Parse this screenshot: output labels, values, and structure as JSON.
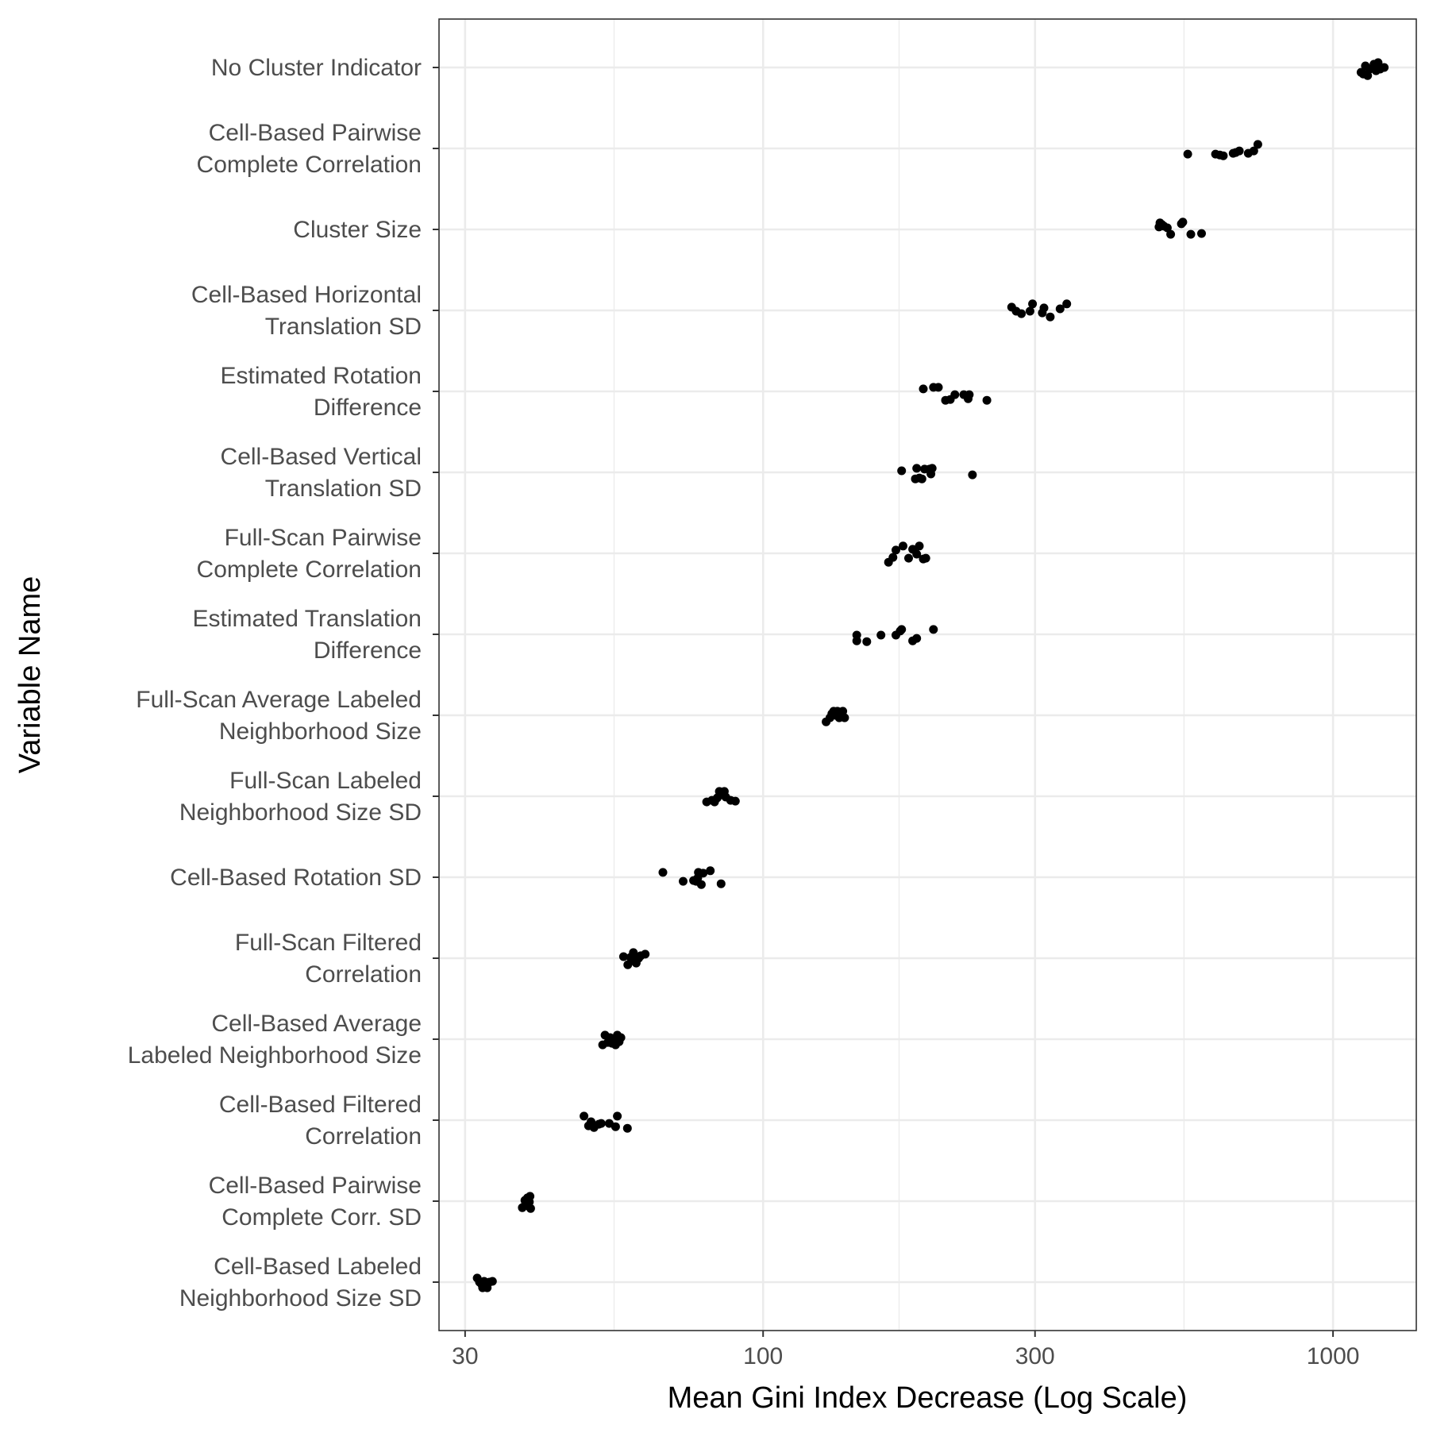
{
  "chart_data": {
    "type": "scatter",
    "title": "",
    "xlabel": "Mean Gini Index Decrease (Log Scale)",
    "ylabel": "Variable Name",
    "x_scale": "log",
    "xlim": [
      27,
      1400
    ],
    "x_ticks": [
      30,
      100,
      300,
      1000
    ],
    "grid": true,
    "legend": "none",
    "point_color": "#000000",
    "categories": [
      "No Cluster Indicator",
      "Cell-Based Pairwise\nComplete Correlation",
      "Cluster Size",
      "Cell-Based Horizontal\nTranslation SD",
      "Estimated Rotation\nDifference",
      "Cell-Based Vertical\nTranslation SD",
      "Full-Scan Pairwise\nComplete Correlation",
      "Estimated Translation\nDifference",
      "Full-Scan Average Labeled\nNeighborhood Size",
      "Full-Scan Labeled\nNeighborhood Size SD",
      "Cell-Based Rotation SD",
      "Full-Scan Filtered\nCorrelation",
      "Cell-Based Average\nLabeled Neighborhood Size",
      "Cell-Based Filtered\nCorrelation",
      "Cell-Based Pairwise\nComplete Corr. SD",
      "Cell-Based Labeled\nNeighborhood Size SD"
    ],
    "points": [
      [
        [
          1120,
          0.06
        ],
        [
          1140,
          -0.02
        ],
        [
          1150,
          0.1
        ],
        [
          1160,
          0.02
        ],
        [
          1180,
          -0.04
        ],
        [
          1190,
          0.04
        ],
        [
          1210,
          0.02
        ],
        [
          1230,
          0.0
        ],
        [
          1130,
          0.08
        ],
        [
          1200,
          -0.06
        ]
      ],
      [
        [
          556,
          0.07
        ],
        [
          622,
          0.07
        ],
        [
          642,
          0.09
        ],
        [
          668,
          0.06
        ],
        [
          685,
          0.03
        ],
        [
          710,
          0.06
        ],
        [
          726,
          0.03
        ],
        [
          738,
          -0.05
        ],
        [
          633,
          0.08
        ],
        [
          675,
          0.05
        ]
      ],
      [
        [
          495,
          -0.03
        ],
        [
          497,
          -0.08
        ],
        [
          505,
          -0.04
        ],
        [
          512,
          -0.02
        ],
        [
          519,
          0.06
        ],
        [
          542,
          -0.07
        ],
        [
          545,
          -0.09
        ],
        [
          563,
          0.06
        ],
        [
          588,
          0.05
        ],
        [
          501,
          -0.06
        ]
      ],
      [
        [
          273,
          -0.04
        ],
        [
          278,
          0.01
        ],
        [
          284,
          0.04
        ],
        [
          294,
          0.01
        ],
        [
          297,
          -0.08
        ],
        [
          311,
          -0.03
        ],
        [
          319,
          0.08
        ],
        [
          332,
          -0.02
        ],
        [
          341,
          -0.08
        ],
        [
          309,
          0.03
        ]
      ],
      [
        [
          191,
          -0.03
        ],
        [
          199,
          -0.05
        ],
        [
          203,
          -0.05
        ],
        [
          209,
          0.11
        ],
        [
          213,
          0.1
        ],
        [
          217,
          0.04
        ],
        [
          225,
          0.04
        ],
        [
          229,
          0.09
        ],
        [
          230,
          0.04
        ],
        [
          247,
          0.11
        ]
      ],
      [
        [
          175,
          -0.02
        ],
        [
          185,
          0.08
        ],
        [
          186,
          -0.05
        ],
        [
          190,
          0.08
        ],
        [
          192,
          -0.04
        ],
        [
          196,
          -0.04
        ],
        [
          197,
          0.02
        ],
        [
          198,
          -0.05
        ],
        [
          233,
          0.03
        ],
        [
          188,
          0.07
        ]
      ],
      [
        [
          166,
          0.11
        ],
        [
          169,
          0.05
        ],
        [
          171,
          -0.04
        ],
        [
          176,
          -0.09
        ],
        [
          180,
          0.06
        ],
        [
          183,
          -0.05
        ],
        [
          186,
          0.01
        ],
        [
          188,
          -0.09
        ],
        [
          191,
          0.07
        ],
        [
          193,
          0.06
        ]
      ],
      [
        [
          146,
          0.08
        ],
        [
          146,
          0.01
        ],
        [
          152,
          0.09
        ],
        [
          161,
          0.01
        ],
        [
          171,
          0.01
        ],
        [
          174,
          -0.04
        ],
        [
          175,
          -0.06
        ],
        [
          183,
          0.08
        ],
        [
          186,
          0.05
        ],
        [
          199,
          -0.06
        ]
      ],
      [
        [
          129,
          0.08
        ],
        [
          131,
          0.03
        ],
        [
          133,
          -0.05
        ],
        [
          134,
          0.0
        ],
        [
          135,
          -0.05
        ],
        [
          137,
          -0.03
        ],
        [
          136,
          0.03
        ],
        [
          138,
          -0.05
        ],
        [
          139,
          0.03
        ],
        [
          132,
          -0.02
        ]
      ],
      [
        [
          79.6,
          0.07
        ],
        [
          82.2,
          0.07
        ],
        [
          83.1,
          0.02
        ],
        [
          83.8,
          -0.06
        ],
        [
          85.5,
          -0.06
        ],
        [
          87.7,
          0.05
        ],
        [
          89.4,
          0.06
        ],
        [
          81.3,
          0.05
        ],
        [
          84.6,
          -0.02
        ],
        [
          86.0,
          0.01
        ]
      ],
      [
        [
          66.7,
          -0.06
        ],
        [
          72.4,
          0.05
        ],
        [
          75.5,
          0.04
        ],
        [
          76.3,
          0.05
        ],
        [
          77.0,
          -0.06
        ],
        [
          77.9,
          0.09
        ],
        [
          78.5,
          -0.05
        ],
        [
          80.8,
          -0.08
        ],
        [
          84.4,
          0.08
        ],
        [
          76.8,
          0.01
        ]
      ],
      [
        [
          56.9,
          -0.02
        ],
        [
          57.9,
          0.08
        ],
        [
          59.2,
          -0.07
        ],
        [
          59.3,
          -0.04
        ],
        [
          59.9,
          0.06
        ],
        [
          62.1,
          -0.05
        ],
        [
          58.9,
          0.03
        ],
        [
          60.5,
          0.0
        ],
        [
          61.0,
          -0.03
        ],
        [
          58.5,
          -0.01
        ]
      ],
      [
        [
          52.3,
          0.07
        ],
        [
          52.8,
          -0.05
        ],
        [
          53.9,
          -0.02
        ],
        [
          54.3,
          0.05
        ],
        [
          55.1,
          0.07
        ],
        [
          55.9,
          0.03
        ],
        [
          56.3,
          -0.02
        ],
        [
          53.4,
          0.04
        ],
        [
          54.8,
          0.0
        ],
        [
          55.5,
          -0.05
        ]
      ],
      [
        [
          48.5,
          -0.05
        ],
        [
          49.4,
          0.07
        ],
        [
          50.5,
          0.09
        ],
        [
          52.0,
          0.04
        ],
        [
          53.7,
          0.04
        ],
        [
          55.1,
          0.08
        ],
        [
          55.5,
          -0.05
        ],
        [
          57.8,
          0.1
        ],
        [
          49.9,
          0.02
        ],
        [
          51.5,
          0.05
        ]
      ],
      [
        [
          37.8,
          0.08
        ],
        [
          38.2,
          -0.01
        ],
        [
          38.4,
          0.02
        ],
        [
          38.6,
          -0.04
        ],
        [
          38.7,
          0.06
        ],
        [
          39.1,
          0.09
        ],
        [
          39.0,
          -0.06
        ],
        [
          38.3,
          0.03
        ],
        [
          38.9,
          0.01
        ],
        [
          38.5,
          -0.02
        ]
      ],
      [
        [
          31.5,
          -0.05
        ],
        [
          31.8,
          0.0
        ],
        [
          32.1,
          0.03
        ],
        [
          32.2,
          0.07
        ],
        [
          32.4,
          -0.01
        ],
        [
          32.6,
          0.04
        ],
        [
          32.8,
          0.07
        ],
        [
          33.1,
          0.0
        ],
        [
          33.5,
          -0.01
        ],
        [
          32.0,
          0.01
        ]
      ]
    ]
  }
}
